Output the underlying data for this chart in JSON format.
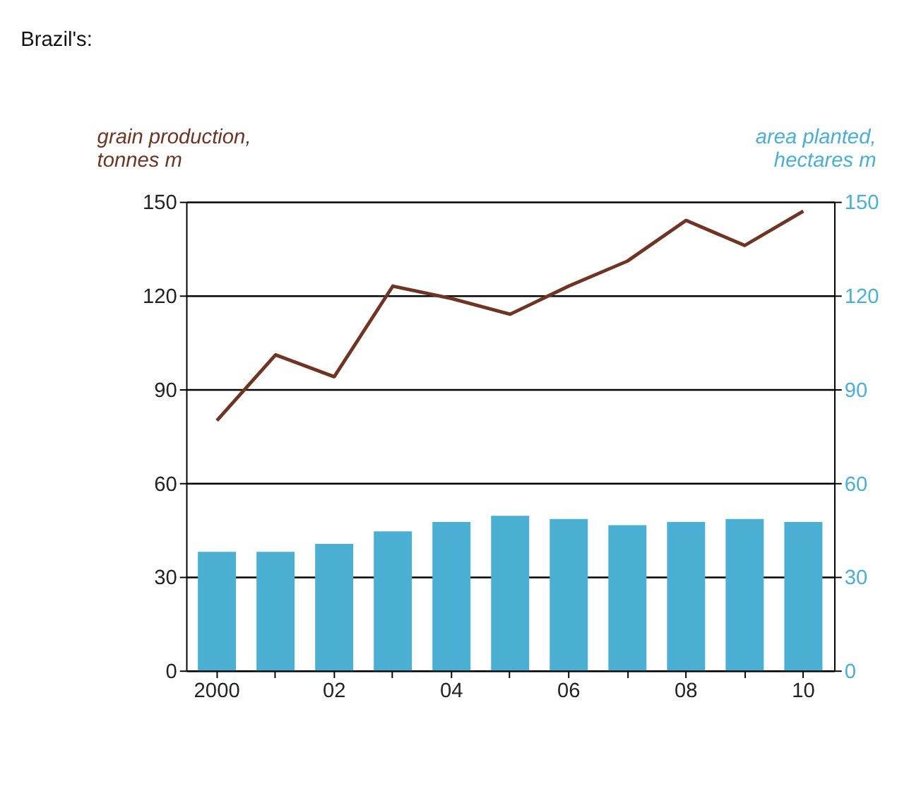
{
  "chart_data": {
    "type": "bar",
    "title": "Brazil's:",
    "ylabel": "grain production, tonnes m",
    "y2label": "area planted, hectares m",
    "categories": [
      "2000",
      null,
      "02",
      null,
      "04",
      null,
      "06",
      null,
      "08",
      null,
      "10"
    ],
    "series": [
      {
        "type": "line",
        "color": "#6e3524",
        "values": [
          80,
          101,
          94,
          123,
          119,
          114,
          123,
          131,
          144,
          136,
          147
        ]
      },
      {
        "axis": "y2",
        "color": "#4bafd3",
        "values": [
          38,
          38,
          40.5,
          44.5,
          47.5,
          49.5,
          48.5,
          46.5,
          47.5,
          48.5,
          47.5
        ]
      }
    ],
    "ylim": [
      0,
      150
    ],
    "yticks": [
      0,
      30,
      60,
      90,
      120,
      150
    ],
    "y2lim": [
      0,
      150
    ],
    "y2ticks": [
      0,
      30,
      60,
      90,
      120,
      150
    ],
    "grid": "y"
  }
}
